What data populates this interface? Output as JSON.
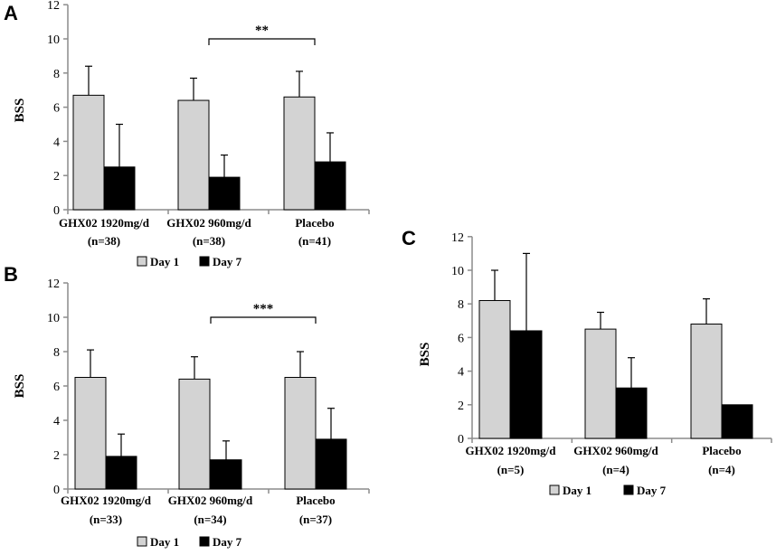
{
  "colors": {
    "day1": "#d3d3d3",
    "day7": "#000000",
    "axis": "#8c8c8c",
    "bar_edge": "#000000"
  },
  "chart_data": [
    {
      "panel": "A",
      "type": "bar",
      "ylabel": "BSS",
      "ylim": [
        0,
        12
      ],
      "yticks": [
        0,
        2,
        4,
        6,
        8,
        10,
        12
      ],
      "categories": [
        [
          "GHX02 1920mg/d",
          "(n=38)"
        ],
        [
          "GHX02 960mg/d",
          "(n=38)"
        ],
        [
          "Placebo",
          "(n=41)"
        ]
      ],
      "series": [
        {
          "name": "Day 1",
          "values": [
            6.7,
            6.4,
            6.6
          ],
          "errors": [
            1.7,
            1.3,
            1.5
          ]
        },
        {
          "name": "Day 7",
          "values": [
            2.5,
            1.9,
            2.8
          ],
          "errors": [
            2.5,
            1.3,
            1.7
          ]
        }
      ],
      "significance": {
        "label": "**",
        "from_category": 1,
        "to_category": 2,
        "y": 10.0
      }
    },
    {
      "panel": "B",
      "type": "bar",
      "ylabel": "BSS",
      "ylim": [
        0,
        12
      ],
      "yticks": [
        0,
        2,
        4,
        6,
        8,
        10,
        12
      ],
      "categories": [
        [
          "GHX02 1920mg/d",
          "(n=33)"
        ],
        [
          "GHX02 960mg/d",
          "(n=34)"
        ],
        [
          "Placebo",
          "(n=37)"
        ]
      ],
      "series": [
        {
          "name": "Day 1",
          "values": [
            6.5,
            6.4,
            6.5
          ],
          "errors": [
            1.6,
            1.3,
            1.5
          ]
        },
        {
          "name": "Day 7",
          "values": [
            1.9,
            1.7,
            2.9
          ],
          "errors": [
            1.3,
            1.1,
            1.8
          ]
        }
      ],
      "significance": {
        "label": "***",
        "from_category": 1,
        "to_category": 2,
        "y": 10.0
      }
    },
    {
      "panel": "C",
      "type": "bar",
      "ylabel": "BSS",
      "ylim": [
        0,
        12
      ],
      "yticks": [
        0,
        2,
        4,
        6,
        8,
        10,
        12
      ],
      "categories": [
        [
          "GHX02 1920mg/d",
          "(n=5)"
        ],
        [
          "GHX02 960mg/d",
          "(n=4)"
        ],
        [
          "Placebo",
          "(n=4)"
        ]
      ],
      "series": [
        {
          "name": "Day 1",
          "values": [
            8.2,
            6.5,
            6.8
          ],
          "errors": [
            1.8,
            1.0,
            1.5
          ]
        },
        {
          "name": "Day 7",
          "values": [
            6.4,
            3.0,
            2.0
          ],
          "errors": [
            4.6,
            1.8,
            0
          ]
        }
      ],
      "significance": null
    }
  ]
}
